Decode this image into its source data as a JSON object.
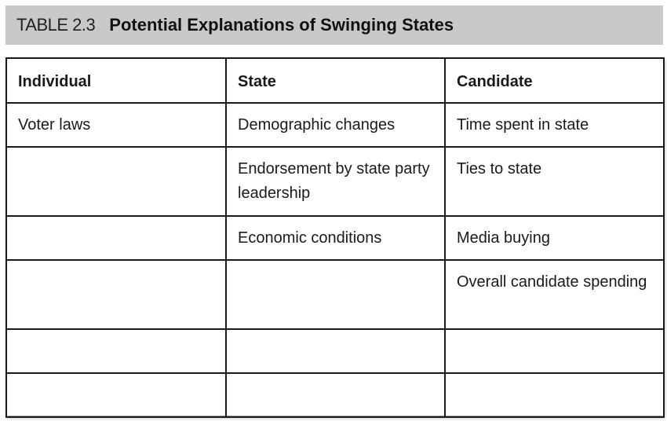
{
  "caption": {
    "label": "TABLE 2.3",
    "title": "Potential Explanations of Swinging States"
  },
  "table": {
    "headers": [
      "Individual",
      "State",
      "Candidate"
    ],
    "rows": [
      [
        "Voter laws",
        "Demographic changes",
        "Time spent in state"
      ],
      [
        "",
        "Endorsement by state party leadership",
        "Ties to state"
      ],
      [
        "",
        "Economic conditions",
        "Media buying"
      ],
      [
        "",
        "",
        "Overall candidate spending"
      ],
      [
        "",
        "",
        ""
      ],
      [
        "",
        "",
        ""
      ]
    ]
  },
  "colors": {
    "caption_background": "#c9c9c9",
    "border": "#1a1a1a"
  }
}
